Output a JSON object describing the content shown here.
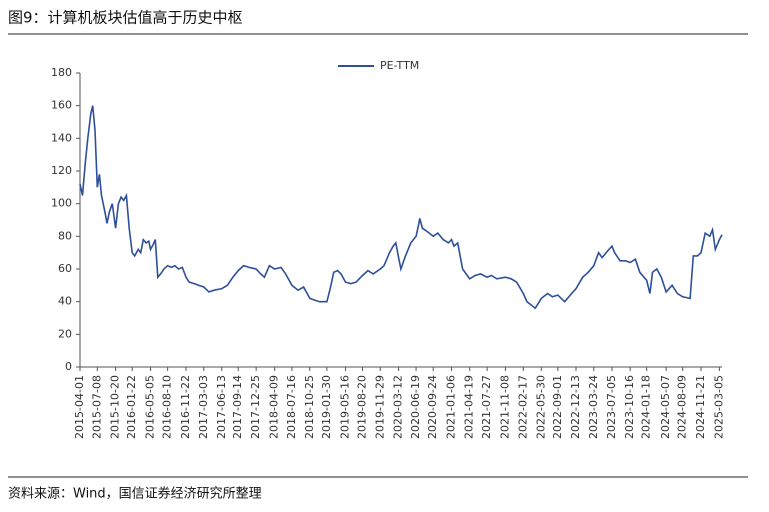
{
  "title": "图9：计算机板块估值高于历史中枢",
  "source": "资料来源：Wind，国信证券经济研究所整理",
  "chart_data": {
    "type": "line",
    "x": [
      "2015-04-01",
      "2015-04-15",
      "2015-05-01",
      "2015-05-15",
      "2015-06-01",
      "2015-06-12",
      "2015-06-25",
      "2015-07-08",
      "2015-07-20",
      "2015-08-01",
      "2015-08-20",
      "2015-09-01",
      "2015-09-15",
      "2015-10-01",
      "2015-10-20",
      "2015-11-05",
      "2015-11-20",
      "2015-12-05",
      "2015-12-20",
      "2016-01-05",
      "2016-01-22",
      "2016-02-05",
      "2016-02-25",
      "2016-03-10",
      "2016-03-25",
      "2016-04-10",
      "2016-04-25",
      "2016-05-05",
      "2016-05-20",
      "2016-06-01",
      "2016-06-15",
      "2016-07-01",
      "2016-07-20",
      "2016-08-10",
      "2016-09-01",
      "2016-09-20",
      "2016-10-10",
      "2016-11-01",
      "2016-11-22",
      "2016-12-10",
      "2017-01-10",
      "2017-02-01",
      "2017-03-03",
      "2017-04-01",
      "2017-05-01",
      "2017-06-13",
      "2017-07-15",
      "2017-08-15",
      "2017-09-14",
      "2017-10-15",
      "2017-11-15",
      "2017-12-25",
      "2018-01-20",
      "2018-02-10",
      "2018-03-10",
      "2018-04-09",
      "2018-05-15",
      "2018-06-10",
      "2018-07-16",
      "2018-08-20",
      "2018-09-20",
      "2018-10-25",
      "2018-11-20",
      "2018-12-20",
      "2019-01-30",
      "2019-02-20",
      "2019-03-10",
      "2019-04-01",
      "2019-04-20",
      "2019-05-16",
      "2019-06-15",
      "2019-07-15",
      "2019-08-20",
      "2019-09-20",
      "2019-10-20",
      "2019-11-29",
      "2019-12-20",
      "2020-01-20",
      "2020-02-10",
      "2020-02-25",
      "2020-03-12",
      "2020-03-25",
      "2020-04-20",
      "2020-05-20",
      "2020-06-19",
      "2020-07-05",
      "2020-07-10",
      "2020-07-25",
      "2020-08-20",
      "2020-09-24",
      "2020-10-20",
      "2020-11-20",
      "2020-12-20",
      "2021-01-06",
      "2021-01-20",
      "2021-02-10",
      "2021-03-10",
      "2021-04-19",
      "2021-05-20",
      "2021-06-20",
      "2021-07-27",
      "2021-08-20",
      "2021-09-20",
      "2021-11-08",
      "2021-12-10",
      "2022-01-10",
      "2022-02-17",
      "2022-03-10",
      "2022-04-26",
      "2022-05-30",
      "2022-07-05",
      "2022-08-01",
      "2022-09-01",
      "2022-10-10",
      "2022-11-10",
      "2022-12-13",
      "2023-01-20",
      "2023-02-20",
      "2023-03-24",
      "2023-04-20",
      "2023-05-10",
      "2023-06-10",
      "2023-07-05",
      "2023-07-20",
      "2023-08-20",
      "2023-09-20",
      "2023-10-16",
      "2023-11-15",
      "2023-12-10",
      "2024-01-18",
      "2024-02-05",
      "2024-02-20",
      "2024-03-15",
      "2024-04-10",
      "2024-05-07",
      "2024-06-10",
      "2024-07-10",
      "2024-08-09",
      "2024-09-20",
      "2024-10-08",
      "2024-11-01",
      "2024-11-21",
      "2024-12-15",
      "2025-01-10",
      "2025-01-25",
      "2025-02-10",
      "2025-03-05",
      "2025-03-20"
    ],
    "series": [
      {
        "name": "PE-TTM",
        "color": "#2e4f9a",
        "values": [
          112,
          105,
          125,
          140,
          155,
          160,
          145,
          110,
          118,
          105,
          95,
          88,
          95,
          100,
          85,
          100,
          104,
          102,
          105,
          85,
          70,
          68,
          72,
          70,
          78,
          76,
          77,
          72,
          75,
          78,
          55,
          57,
          60,
          62,
          61,
          62,
          60,
          61,
          55,
          52,
          51,
          50,
          49,
          46,
          47,
          48,
          50,
          55,
          59,
          62,
          61,
          60,
          57,
          55,
          62,
          60,
          61,
          57,
          50,
          47,
          49,
          42,
          41,
          40,
          40,
          49,
          58,
          59,
          57,
          52,
          51,
          52,
          56,
          59,
          57,
          60,
          62,
          70,
          74,
          76,
          67,
          60,
          68,
          76,
          80,
          88,
          91,
          85,
          83,
          80,
          82,
          78,
          76,
          78,
          74,
          76,
          60,
          54,
          56,
          57,
          55,
          56,
          54,
          55,
          54,
          52,
          45,
          40,
          36,
          42,
          45,
          43,
          44,
          40,
          44,
          48,
          55,
          58,
          62,
          70,
          67,
          71,
          74,
          70,
          65,
          65,
          64,
          66,
          58,
          53,
          45,
          58,
          60,
          55,
          46,
          50,
          45,
          43,
          42,
          68,
          68,
          70,
          82,
          80,
          84,
          72,
          78,
          81
        ]
      }
    ],
    "xlim": [
      "2015-04-01",
      "2025-03-20"
    ],
    "xticks": [
      "2015-04-01",
      "2015-07-08",
      "2015-10-20",
      "2016-01-22",
      "2016-05-05",
      "2016-08-10",
      "2016-11-22",
      "2017-03-03",
      "2017-06-13",
      "2017-09-14",
      "2017-12-25",
      "2018-04-09",
      "2018-07-16",
      "2018-10-25",
      "2019-01-30",
      "2019-05-16",
      "2019-08-20",
      "2019-11-29",
      "2020-03-12",
      "2020-06-19",
      "2020-09-24",
      "2021-01-06",
      "2021-04-19",
      "2021-07-27",
      "2021-11-08",
      "2022-02-17",
      "2022-05-30",
      "2022-09-01",
      "2022-12-13",
      "2023-03-24",
      "2023-07-05",
      "2023-10-16",
      "2024-01-18",
      "2024-05-07",
      "2024-08-09",
      "2024-11-21",
      "2025-03-05"
    ],
    "ylim": [
      0,
      180
    ],
    "yticks": [
      0,
      20,
      40,
      60,
      80,
      100,
      120,
      140,
      160,
      180
    ],
    "legend": "top"
  }
}
